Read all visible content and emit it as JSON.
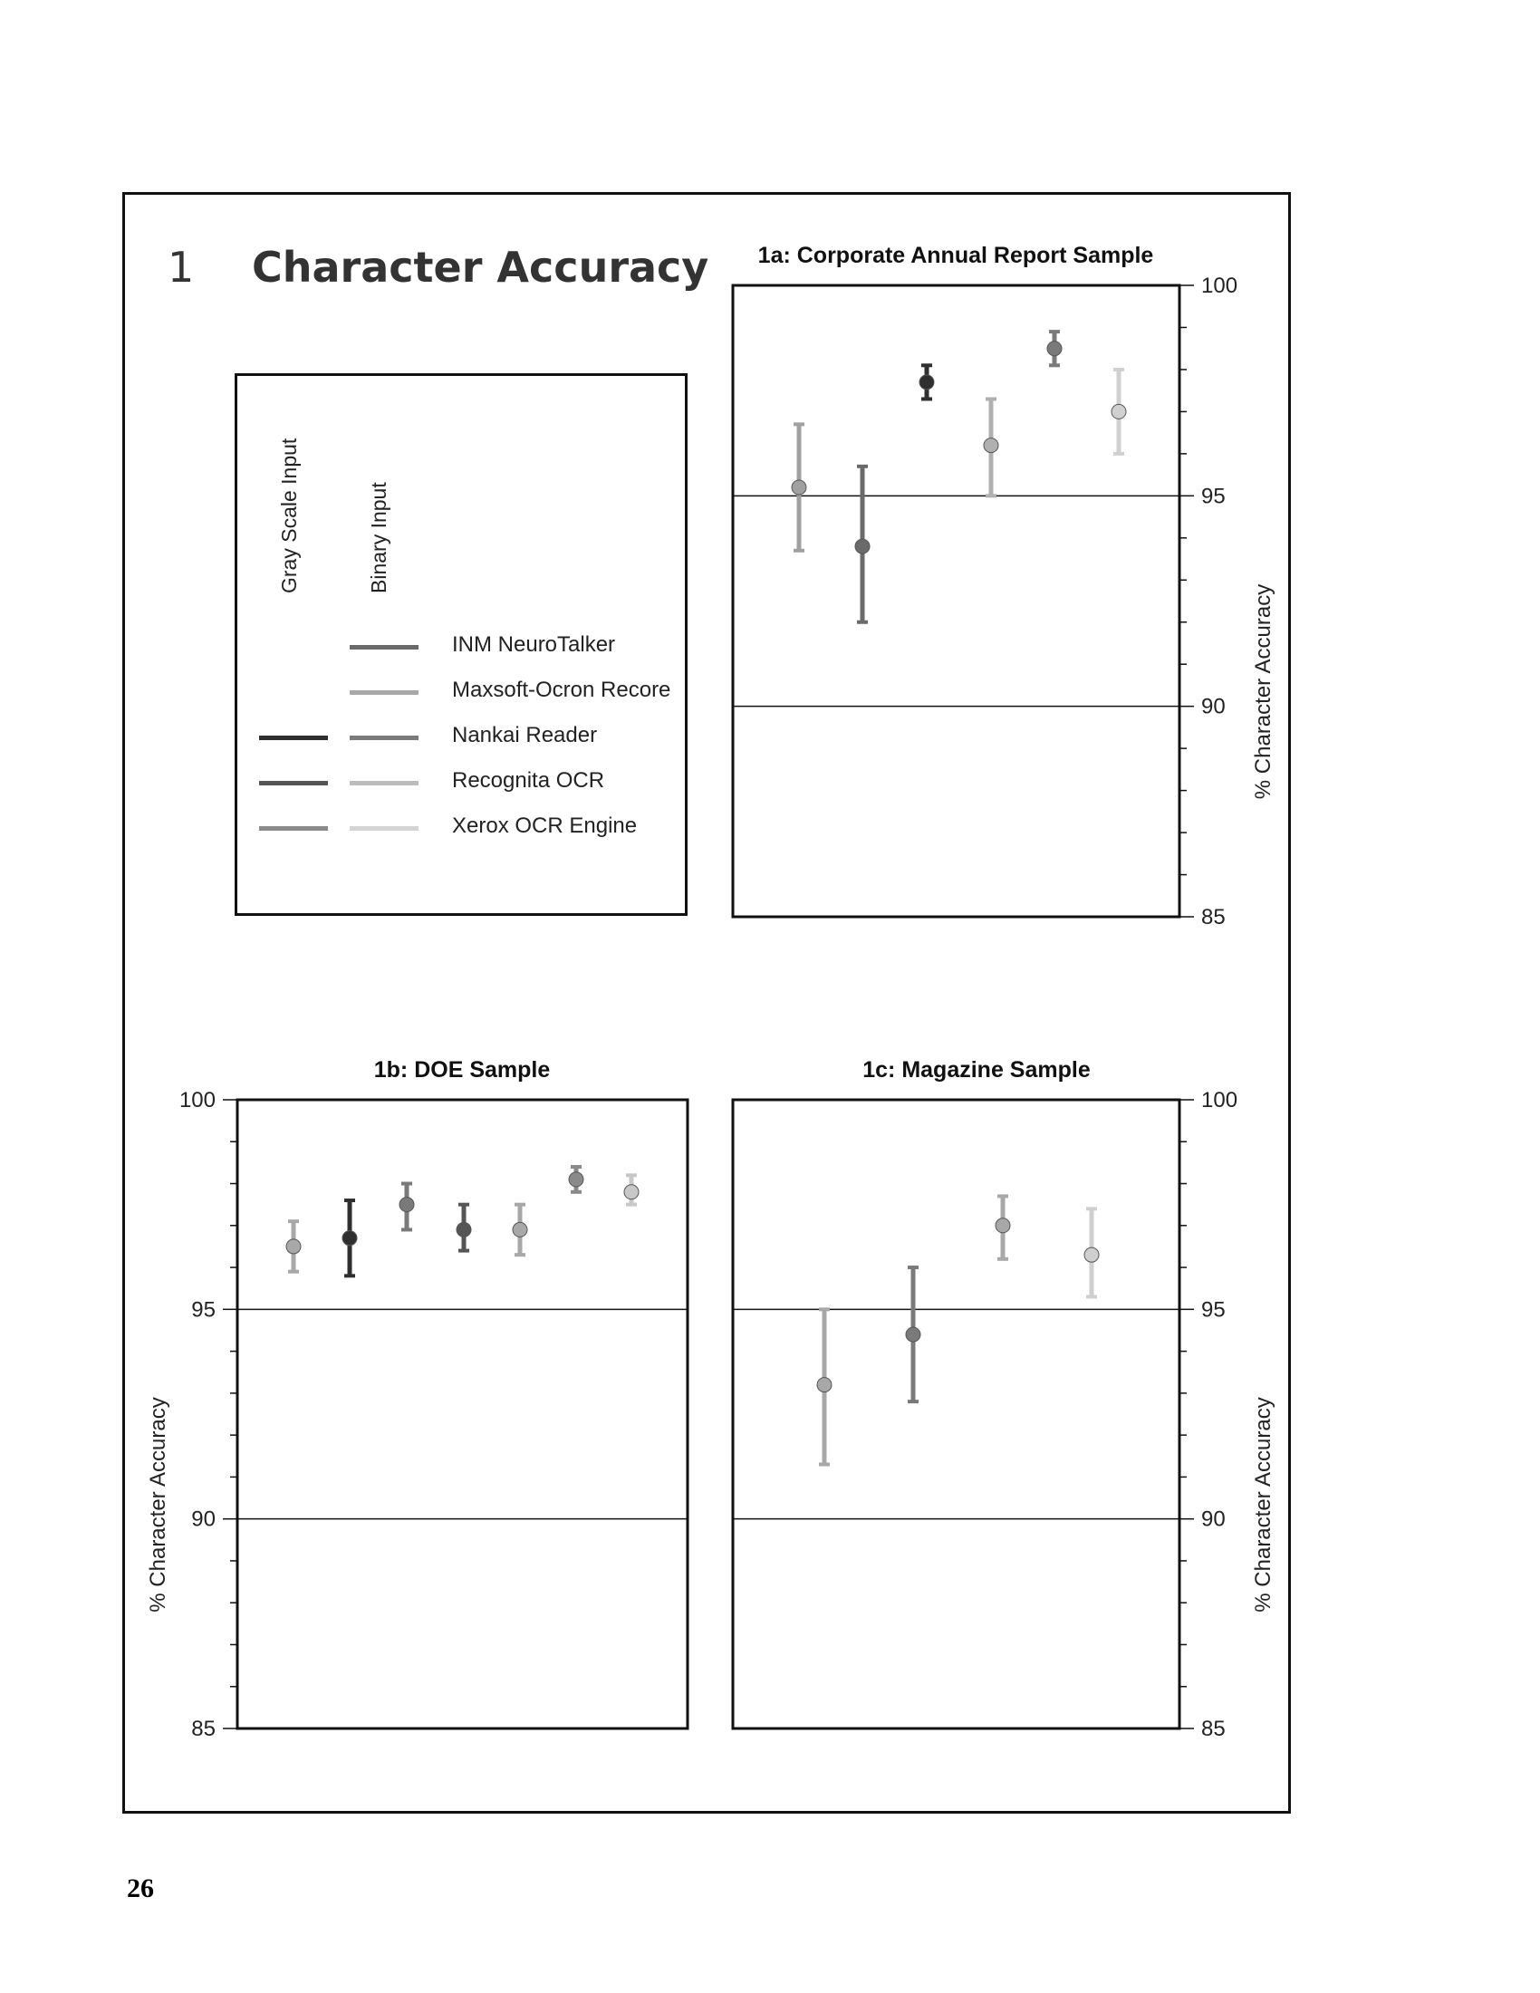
{
  "page": {
    "section_number": "1",
    "title": "Character Accuracy",
    "page_number": "26"
  },
  "legend": {
    "gray_header": "Gray Scale Input",
    "binary_header": "Binary Input",
    "entries": [
      {
        "label": "INM NeuroTalker",
        "gray": null,
        "binary": "#6a6a6a"
      },
      {
        "label": "Maxsoft-Ocron Recore",
        "gray": null,
        "binary": "#a8a8a8"
      },
      {
        "label": "Nankai Reader",
        "gray": "#2f2f2f",
        "binary": "#7a7a7a"
      },
      {
        "label": "Recognita OCR",
        "gray": "#555555",
        "binary": "#bcbcbc"
      },
      {
        "label": "Xerox OCR Engine",
        "gray": "#8a8a8a",
        "binary": "#d4d4d4"
      }
    ]
  },
  "chart_data": [
    {
      "id": "1a",
      "type": "scatter",
      "title": "1a: Corporate Annual Report Sample",
      "ylabel": "% Character Accuracy",
      "ylim": [
        85,
        100
      ],
      "yticks": [
        85,
        90,
        95,
        100
      ],
      "axis_side": "right",
      "series": [
        {
          "name": "Maxsoft-Ocron Recore",
          "input": "binary",
          "color": "#a0a0a0",
          "value": 95.2,
          "low": 93.7,
          "high": 96.7
        },
        {
          "name": "INM NeuroTalker",
          "input": "binary",
          "color": "#6a6a6a",
          "value": 93.8,
          "low": 92.0,
          "high": 95.7
        },
        {
          "name": "Nankai Reader",
          "input": "gray",
          "color": "#2f2f2f",
          "value": 97.7,
          "low": 97.3,
          "high": 98.1
        },
        {
          "name": "Recognita OCR",
          "input": "binary",
          "color": "#b0b0b0",
          "value": 96.2,
          "low": 95.0,
          "high": 97.3
        },
        {
          "name": "Nankai Reader",
          "input": "binary",
          "color": "#7a7a7a",
          "value": 98.5,
          "low": 98.1,
          "high": 98.9
        },
        {
          "name": "Xerox OCR Engine",
          "input": "binary",
          "color": "#d0d0d0",
          "value": 97.0,
          "low": 96.0,
          "high": 98.0
        }
      ]
    },
    {
      "id": "1b",
      "type": "scatter",
      "title": "1b: DOE Sample",
      "ylabel": "% Character Accuracy",
      "ylim": [
        85,
        100
      ],
      "yticks": [
        85,
        90,
        95,
        100
      ],
      "axis_side": "left",
      "series": [
        {
          "name": "Maxsoft-Ocron Recore",
          "input": "binary",
          "color": "#a8a8a8",
          "value": 96.5,
          "low": 95.9,
          "high": 97.1
        },
        {
          "name": "Nankai Reader",
          "input": "gray",
          "color": "#2f2f2f",
          "value": 96.7,
          "low": 95.8,
          "high": 97.6
        },
        {
          "name": "Nankai Reader",
          "input": "binary",
          "color": "#7a7a7a",
          "value": 97.5,
          "low": 96.9,
          "high": 98.0
        },
        {
          "name": "Recognita OCR",
          "input": "gray",
          "color": "#555555",
          "value": 96.9,
          "low": 96.4,
          "high": 97.5
        },
        {
          "name": "Recognita OCR",
          "input": "binary",
          "color": "#a8a8a8",
          "value": 96.9,
          "low": 96.3,
          "high": 97.5
        },
        {
          "name": "Xerox OCR Engine",
          "input": "gray",
          "color": "#8a8a8a",
          "value": 98.1,
          "low": 97.8,
          "high": 98.4
        },
        {
          "name": "Xerox OCR Engine",
          "input": "binary",
          "color": "#c8c8c8",
          "value": 97.8,
          "low": 97.5,
          "high": 98.2
        }
      ]
    },
    {
      "id": "1c",
      "type": "scatter",
      "title": "1c: Magazine Sample",
      "ylabel": "% Character Accuracy",
      "ylim": [
        85,
        100
      ],
      "yticks": [
        85,
        90,
        95,
        100
      ],
      "axis_side": "right",
      "series": [
        {
          "name": "Maxsoft-Ocron Recore",
          "input": "binary",
          "color": "#a8a8a8",
          "value": 93.2,
          "low": 91.3,
          "high": 95.0
        },
        {
          "name": "Nankai Reader",
          "input": "binary",
          "color": "#7a7a7a",
          "value": 94.4,
          "low": 92.8,
          "high": 96.0
        },
        {
          "name": "Recognita OCR",
          "input": "binary",
          "color": "#a8a8a8",
          "value": 97.0,
          "low": 96.2,
          "high": 97.7
        },
        {
          "name": "Xerox OCR Engine",
          "input": "binary",
          "color": "#cfcfcf",
          "value": 96.3,
          "low": 95.3,
          "high": 97.4
        }
      ]
    }
  ]
}
